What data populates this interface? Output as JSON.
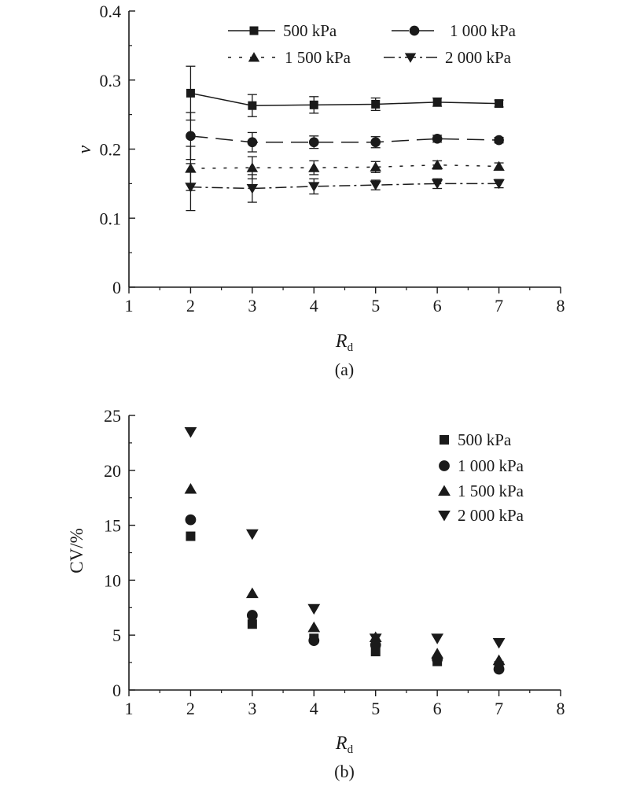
{
  "chart_data": [
    {
      "type": "line",
      "caption": "(a)",
      "xlabel_main": "R",
      "xlabel_sub": "d",
      "ylabel": "ν",
      "xlim": [
        1,
        8
      ],
      "ylim": [
        0,
        0.4
      ],
      "xticks": [
        1,
        2,
        3,
        4,
        5,
        6,
        7,
        8
      ],
      "yticks": [
        0,
        0.1,
        0.2,
        0.3,
        0.4
      ],
      "ytick_labels": [
        "0",
        "0.1",
        "0.2",
        "0.3",
        "0.4"
      ],
      "legend_position": "top",
      "x": [
        2,
        3,
        4,
        5,
        6,
        7
      ],
      "series": [
        {
          "name": "500 kPa",
          "marker": "square",
          "dash": "solid",
          "values": [
            0.281,
            0.263,
            0.264,
            0.265,
            0.268,
            0.266
          ],
          "errors": [
            0.039,
            0.016,
            0.012,
            0.009,
            0.006,
            0.005
          ]
        },
        {
          "name": "1 000 kPa",
          "marker": "circle",
          "dash": "dashed",
          "values": [
            0.219,
            0.21,
            0.21,
            0.21,
            0.215,
            0.213
          ],
          "errors": [
            0.034,
            0.014,
            0.009,
            0.008,
            0.005,
            0.004
          ]
        },
        {
          "name": "1 500 kPa",
          "marker": "triangle-up",
          "dash": "dotted",
          "values": [
            0.172,
            0.173,
            0.173,
            0.174,
            0.177,
            0.175
          ],
          "errors": [
            0.032,
            0.016,
            0.01,
            0.008,
            0.006,
            0.005
          ]
        },
        {
          "name": "2 000 kPa",
          "marker": "triangle-down",
          "dash": "dashdot",
          "values": [
            0.145,
            0.143,
            0.146,
            0.148,
            0.15,
            0.15
          ],
          "errors": [
            0.034,
            0.02,
            0.011,
            0.007,
            0.007,
            0.006
          ]
        }
      ]
    },
    {
      "type": "scatter",
      "caption": "(b)",
      "xlabel_main": "R",
      "xlabel_sub": "d",
      "ylabel": "CV/%",
      "xlim": [
        1,
        8
      ],
      "ylim": [
        0,
        25
      ],
      "xticks": [
        1,
        2,
        3,
        4,
        5,
        6,
        7,
        8
      ],
      "yticks": [
        0,
        5,
        10,
        15,
        20,
        25
      ],
      "ytick_labels": [
        "0",
        "5",
        "10",
        "15",
        "20",
        "25"
      ],
      "legend_position": "top-right",
      "x": [
        2,
        3,
        4,
        5,
        6,
        7
      ],
      "series": [
        {
          "name": "500 kPa",
          "marker": "square",
          "values": [
            14.0,
            6.0,
            4.7,
            3.5,
            2.6,
            2.2
          ]
        },
        {
          "name": "1 000 kPa",
          "marker": "circle",
          "values": [
            15.5,
            6.8,
            4.5,
            4.1,
            2.8,
            1.9
          ]
        },
        {
          "name": "1 500 kPa",
          "marker": "triangle-up",
          "values": [
            18.3,
            8.8,
            5.7,
            4.8,
            3.3,
            2.7
          ]
        },
        {
          "name": "2 000 kPa",
          "marker": "triangle-down",
          "values": [
            23.5,
            14.2,
            7.4,
            4.7,
            4.7,
            4.3
          ]
        }
      ]
    }
  ],
  "colors": {
    "ink": "#1a1a1a",
    "background": "#ffffff"
  }
}
